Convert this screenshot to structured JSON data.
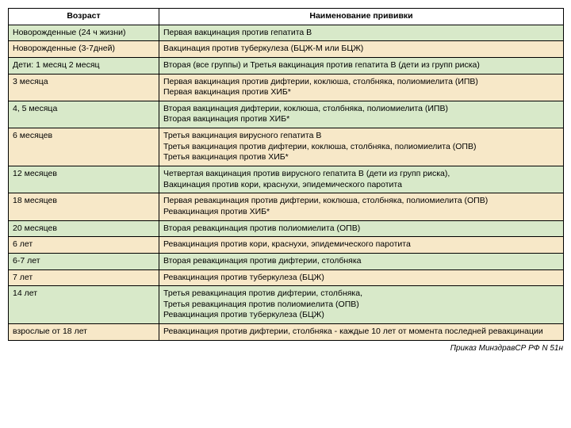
{
  "table": {
    "header": {
      "age": "Возраст",
      "name": "Наименование прививки"
    },
    "rows": [
      {
        "bg": "#d8e9c9",
        "age": "Новорожденные (24 ч жизни)",
        "name": "Первая вакцинация против гепатита В"
      },
      {
        "bg": "#f7e8c8",
        "age": "Новорожденные   (3-7дней)",
        "name": "Вакцинация против туберкулеза (БЦЖ-М или БЦЖ)"
      },
      {
        "bg": "#d8e9c9",
        "age": "Дети:  1 месяц      2 месяц",
        "name": "Вторая (все группы) и Третья вакцинация против гепатита В   (дети из групп риска)"
      },
      {
        "bg": "#f7e8c8",
        "age": "3 месяца",
        "name": "Первая вакцинация против дифтерии, коклюша, столбняка, полиомиелита (ИПВ)\nПервая вакцинация против ХИБ*"
      },
      {
        "bg": "#d8e9c9",
        "age": "4, 5 месяца",
        "name": "Вторая вакцинация дифтерии, коклюша, столбняка, полиомиелита (ИПВ)\nВторая вакцинация против ХИБ*"
      },
      {
        "bg": "#f7e8c8",
        "age": "6 месяцев",
        "name": "Третья вакцинация вирусного гепатита В\nТретья вакцинация против дифтерии, коклюша, столбняка, полиомиелита (ОПВ)\nТретья вакцинация против ХИБ*"
      },
      {
        "bg": "#d8e9c9",
        "age": "12 месяцев",
        "name": "Четвертая вакцинация против вирусного гепатита В (дети из групп риска),\nВакцинация против кори, краснухи, эпидемического паротита"
      },
      {
        "bg": "#f7e8c8",
        "age": "18 месяцев",
        "name": "Первая ревакцинация против дифтерии, коклюша, столбняка, полиомиелита (ОПВ)\nРевакцинация против ХИБ*"
      },
      {
        "bg": "#d8e9c9",
        "age": "20 месяцев",
        "name": "Вторая ревакцинация против полиомиелита (ОПВ)"
      },
      {
        "bg": "#f7e8c8",
        "age": "6 лет",
        "name": "Ревакцинация против кори, краснухи, эпидемического паротита"
      },
      {
        "bg": "#d8e9c9",
        "age": "6-7 лет",
        "name": "Вторая ревакцинация против дифтерии,  столбняка"
      },
      {
        "bg": "#f7e8c8",
        "age": "7 лет",
        "name": "Ревакцинация против туберкулеза (БЦЖ)"
      },
      {
        "bg": "#d8e9c9",
        "age": "14 лет",
        "name": "Третья ревакцинация против дифтерии, столбняка,\nТретья ревакцинация против полиомиелита (ОПВ)\nРевакцинация против туберкулеза (БЦЖ)"
      },
      {
        "bg": "#f7e8c8",
        "age": "взрослые от 18 лет",
        "name": "Ревакцинация против дифтерии, столбняка - каждые 10 лет от момента последней ревакцинации"
      }
    ]
  },
  "footer": "Приказ МинздравСР РФ N 51н"
}
